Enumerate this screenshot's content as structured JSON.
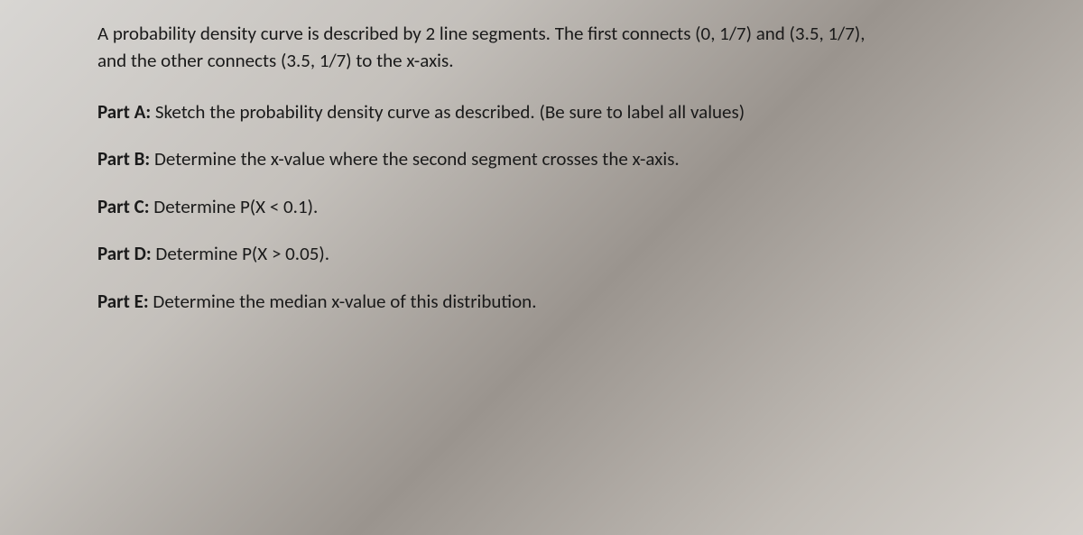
{
  "intro": {
    "line1": "A probability density curve is described by 2 line segments.  The first connects (0, 1/7) and (3.5, 1/7),",
    "line2": "and the other connects (3.5, 1/7) to the x-axis."
  },
  "parts": {
    "a": {
      "label": "Part A:",
      "text": " Sketch the probability density curve as described.  (Be sure to label all values)"
    },
    "b": {
      "label": "Part B:",
      "text": " Determine the x-value where the second segment crosses the x-axis."
    },
    "c": {
      "label": "Part C:",
      "text": " Determine P(X < 0.1)."
    },
    "d": {
      "label": "Part D:",
      "text": " Determine P(X > 0.05)."
    },
    "e": {
      "label": "Part E:",
      "text": " Determine the median x-value of this distribution."
    }
  }
}
